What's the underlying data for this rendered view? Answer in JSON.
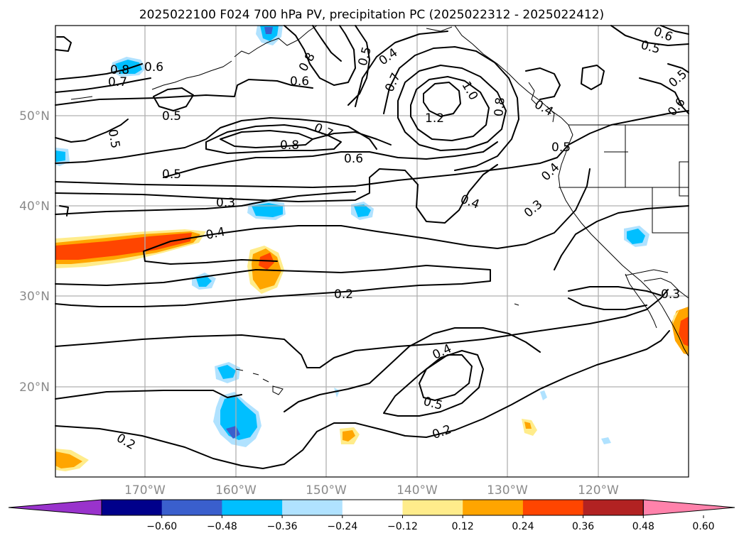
{
  "title": "2025022100 F024 700 hPa PV, precipitation PC (2025022312 - 2025022412)",
  "lat_labels": [
    "50°N",
    "40°N",
    "30°N",
    "20°N"
  ],
  "lon_labels": [
    "170°W",
    "160°W",
    "150°W",
    "140°W",
    "130°W",
    "120°W"
  ],
  "colorbar": {
    "ticks": [
      "−0.60",
      "−0.48",
      "−0.36",
      "−0.24",
      "−0.12",
      "0.12",
      "0.24",
      "0.36",
      "0.48",
      "0.60"
    ],
    "colors": [
      "#9933cc",
      "#00008b",
      "#3a5fcd",
      "#00bfff",
      "#b0e2ff",
      "#ffffff",
      "#ffec8b",
      "#ffa500",
      "#ff4500",
      "#b22222",
      "#ff82ab"
    ]
  },
  "contour_labels": [
    {
      "text": "0.8"
    },
    {
      "text": "0.7"
    },
    {
      "text": "0.6"
    },
    {
      "text": "0.5"
    },
    {
      "text": "0.5"
    },
    {
      "text": "0.5"
    },
    {
      "text": "0.3"
    },
    {
      "text": "0.4"
    },
    {
      "text": "0.8"
    },
    {
      "text": "0.6"
    },
    {
      "text": "0.5"
    },
    {
      "text": "0.4"
    },
    {
      "text": "0.7"
    },
    {
      "text": "1.0"
    },
    {
      "text": "1.2"
    },
    {
      "text": "0.8"
    },
    {
      "text": "0.7"
    },
    {
      "text": "0.8"
    },
    {
      "text": "0.6"
    },
    {
      "text": "0.4"
    },
    {
      "text": "0.4"
    },
    {
      "text": "0.5"
    },
    {
      "text": "0.4"
    },
    {
      "text": "0.3"
    },
    {
      "text": "0.6"
    },
    {
      "text": "0.5"
    },
    {
      "text": "0.5"
    },
    {
      "text": "0.6"
    },
    {
      "text": "0.2"
    },
    {
      "text": "0.3"
    },
    {
      "text": "0.4"
    },
    {
      "text": "0.5"
    },
    {
      "text": "0.2"
    },
    {
      "text": "0.2"
    }
  ]
}
